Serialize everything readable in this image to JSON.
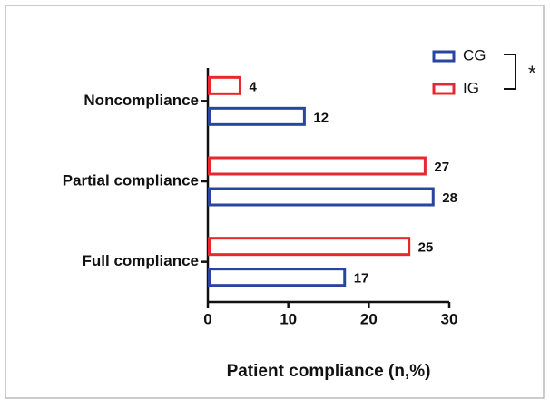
{
  "chart_data": {
    "type": "hbar",
    "xlabel": "Patient compliance (n,%)",
    "categories": [
      "Noncompliance",
      "Partial compliance",
      "Full compliance"
    ],
    "series": [
      {
        "name": "CG",
        "color": "#2a45a0",
        "values": [
          12,
          28,
          17
        ]
      },
      {
        "name": "IG",
        "color": "#e8282e",
        "values": [
          4,
          27,
          25
        ]
      }
    ],
    "xlim": [
      0,
      30
    ],
    "xticks": [
      0,
      10,
      20,
      30
    ],
    "annotation": "*"
  }
}
